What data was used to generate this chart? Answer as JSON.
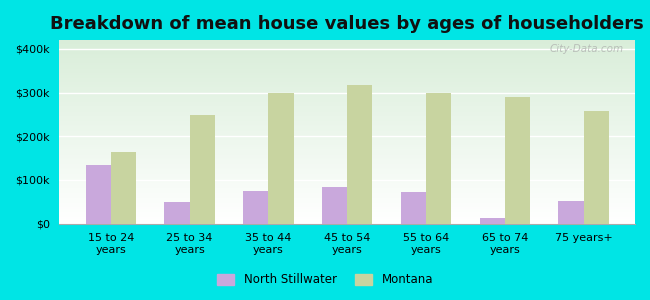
{
  "title": "Breakdown of mean house values by ages of householders",
  "categories": [
    "15 to 24\nyears",
    "25 to 34\nyears",
    "35 to 44\nyears",
    "45 to 54\nyears",
    "55 to 64\nyears",
    "65 to 74\nyears",
    "75 years+"
  ],
  "north_stillwater": [
    135000,
    50000,
    75000,
    85000,
    72000,
    12000,
    52000
  ],
  "montana": [
    163000,
    248000,
    298000,
    318000,
    298000,
    290000,
    257000
  ],
  "ns_color": "#c9a8dc",
  "mt_color": "#c8d4a0",
  "figure_facecolor": "#00e5e5",
  "plot_bg_top": "#d8eed8",
  "plot_bg_bottom": "#f0faf0",
  "ylabel_ticks": [
    0,
    100000,
    200000,
    300000,
    400000
  ],
  "ylim": [
    0,
    420000
  ],
  "legend_labels": [
    "North Stillwater",
    "Montana"
  ],
  "watermark": "City-Data.com",
  "title_fontsize": 13,
  "tick_fontsize": 8,
  "bar_width": 0.32,
  "grid_color": "#ffffff",
  "spine_color": "#aaaaaa"
}
